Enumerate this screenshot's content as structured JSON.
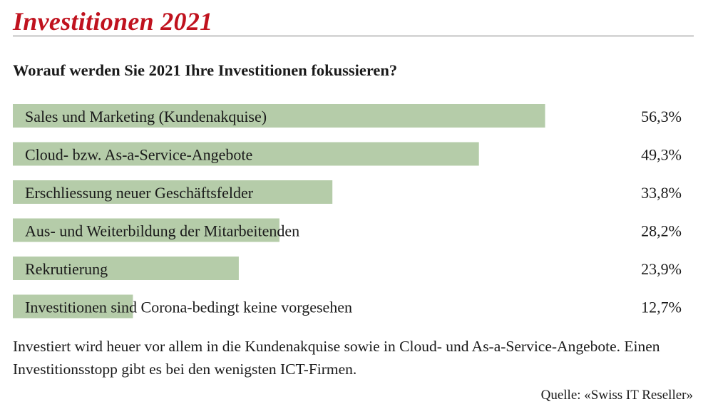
{
  "header": {
    "title": "Investitionen 2021",
    "question": "Worauf werden Sie 2021 Ihre Investitionen fokussieren?"
  },
  "chart_data": {
    "type": "bar",
    "orientation": "horizontal",
    "title": "Worauf werden Sie 2021 Ihre Investitionen fokussieren?",
    "categories": [
      "Sales und Marketing (Kundenakquise)",
      "Cloud- bzw. As-a-Service-Angebote",
      "Erschliessung neuer Geschäftsfelder",
      "Aus- und Weiterbildung der Mitarbeitenden",
      "Rekrutierung",
      "Investitionen sind Corona-bedingt keine vorgesehen"
    ],
    "values": [
      56.3,
      49.3,
      33.8,
      28.2,
      23.9,
      12.7
    ],
    "value_labels": [
      "56,3%",
      "49,3%",
      "33,8%",
      "28,2%",
      "23,9%",
      "12,7%"
    ],
    "unit": "%",
    "xlim": [
      0,
      100
    ],
    "grid": false,
    "legend": "none",
    "bar_color": "#b5cca9",
    "title_color": "#c0121e"
  },
  "footer": {
    "caption": "Investiert wird heuer vor allem in die Kundenakquise sowie in Cloud- und As-a-Service-Angebote. Einen Investitionsstopp gibt es bei den wenigsten ICT-Firmen.",
    "source": "Quelle: «Swiss IT Reseller»"
  }
}
